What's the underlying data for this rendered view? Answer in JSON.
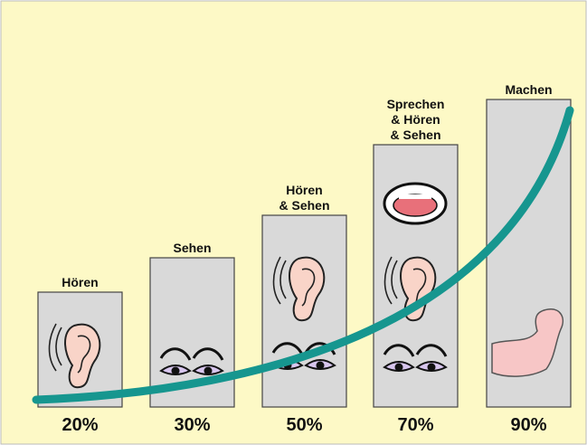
{
  "steps": [
    {
      "label_lines": [
        "Hören"
      ],
      "percent": "20%"
    },
    {
      "label_lines": [
        "Sehen"
      ],
      "percent": "30%"
    },
    {
      "label_lines": [
        "Hören",
        "& Sehen"
      ],
      "percent": "50%"
    },
    {
      "label_lines": [
        "Sprechen",
        "& Hören",
        "& Sehen"
      ],
      "percent": "70%"
    },
    {
      "label_lines": [
        "Machen"
      ],
      "percent": "90%"
    }
  ]
}
